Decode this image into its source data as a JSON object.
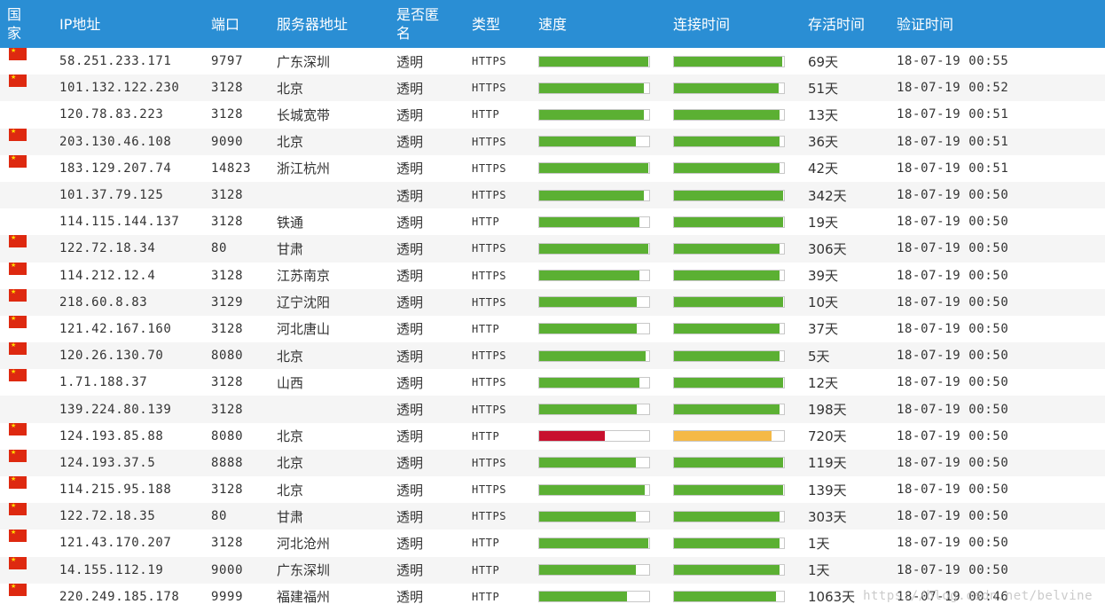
{
  "headers": [
    "国家",
    "IP地址",
    "端口",
    "服务器地址",
    "是否匿名",
    "类型",
    "速度",
    "连接时间",
    "存活时间",
    "验证时间"
  ],
  "colors": {
    "header_bg": "#2a8ed4",
    "bar_good": "#5bb033",
    "bar_bad": "#c8102e",
    "bar_warn": "#f5b946"
  },
  "rows": [
    {
      "flag": true,
      "ip": "58.251.233.171",
      "port": "9797",
      "location": "广东深圳",
      "anon": "透明",
      "type": "HTTPS",
      "speed": 0.99,
      "speed_color": "#5bb033",
      "conn": 0.98,
      "conn_color": "#5bb033",
      "alive": "69天",
      "verified": "18-07-19 00:55"
    },
    {
      "flag": true,
      "ip": "101.132.122.230",
      "port": "3128",
      "location": "北京",
      "anon": "透明",
      "type": "HTTPS",
      "speed": 0.95,
      "speed_color": "#5bb033",
      "conn": 0.95,
      "conn_color": "#5bb033",
      "alive": "51天",
      "verified": "18-07-19 00:52"
    },
    {
      "flag": false,
      "ip": "120.78.83.223",
      "port": "3128",
      "location": "长城宽带",
      "anon": "透明",
      "type": "HTTP",
      "speed": 0.95,
      "speed_color": "#5bb033",
      "conn": 0.96,
      "conn_color": "#5bb033",
      "alive": "13天",
      "verified": "18-07-19 00:51"
    },
    {
      "flag": true,
      "ip": "203.130.46.108",
      "port": "9090",
      "location": "北京",
      "anon": "透明",
      "type": "HTTPS",
      "speed": 0.88,
      "speed_color": "#5bb033",
      "conn": 0.96,
      "conn_color": "#5bb033",
      "alive": "36天",
      "verified": "18-07-19 00:51"
    },
    {
      "flag": true,
      "ip": "183.129.207.74",
      "port": "14823",
      "location": "浙江杭州",
      "anon": "透明",
      "type": "HTTPS",
      "speed": 0.99,
      "speed_color": "#5bb033",
      "conn": 0.96,
      "conn_color": "#5bb033",
      "alive": "42天",
      "verified": "18-07-19 00:51"
    },
    {
      "flag": false,
      "ip": "101.37.79.125",
      "port": "3128",
      "location": "",
      "anon": "透明",
      "type": "HTTPS",
      "speed": 0.95,
      "speed_color": "#5bb033",
      "conn": 0.99,
      "conn_color": "#5bb033",
      "alive": "342天",
      "verified": "18-07-19 00:50"
    },
    {
      "flag": false,
      "ip": "114.115.144.137",
      "port": "3128",
      "location": "铁通",
      "anon": "透明",
      "type": "HTTP",
      "speed": 0.91,
      "speed_color": "#5bb033",
      "conn": 0.99,
      "conn_color": "#5bb033",
      "alive": "19天",
      "verified": "18-07-19 00:50"
    },
    {
      "flag": true,
      "ip": "122.72.18.34",
      "port": "80",
      "location": "甘肃",
      "anon": "透明",
      "type": "HTTPS",
      "speed": 0.99,
      "speed_color": "#5bb033",
      "conn": 0.96,
      "conn_color": "#5bb033",
      "alive": "306天",
      "verified": "18-07-19 00:50"
    },
    {
      "flag": true,
      "ip": "114.212.12.4",
      "port": "3128",
      "location": "江苏南京",
      "anon": "透明",
      "type": "HTTPS",
      "speed": 0.91,
      "speed_color": "#5bb033",
      "conn": 0.96,
      "conn_color": "#5bb033",
      "alive": "39天",
      "verified": "18-07-19 00:50"
    },
    {
      "flag": true,
      "ip": "218.60.8.83",
      "port": "3129",
      "location": "辽宁沈阳",
      "anon": "透明",
      "type": "HTTPS",
      "speed": 0.89,
      "speed_color": "#5bb033",
      "conn": 0.99,
      "conn_color": "#5bb033",
      "alive": "10天",
      "verified": "18-07-19 00:50"
    },
    {
      "flag": true,
      "ip": "121.42.167.160",
      "port": "3128",
      "location": "河北唐山",
      "anon": "透明",
      "type": "HTTP",
      "speed": 0.89,
      "speed_color": "#5bb033",
      "conn": 0.96,
      "conn_color": "#5bb033",
      "alive": "37天",
      "verified": "18-07-19 00:50"
    },
    {
      "flag": true,
      "ip": "120.26.130.70",
      "port": "8080",
      "location": "北京",
      "anon": "透明",
      "type": "HTTPS",
      "speed": 0.97,
      "speed_color": "#5bb033",
      "conn": 0.96,
      "conn_color": "#5bb033",
      "alive": "5天",
      "verified": "18-07-19 00:50"
    },
    {
      "flag": true,
      "ip": "1.71.188.37",
      "port": "3128",
      "location": "山西",
      "anon": "透明",
      "type": "HTTPS",
      "speed": 0.91,
      "speed_color": "#5bb033",
      "conn": 0.99,
      "conn_color": "#5bb033",
      "alive": "12天",
      "verified": "18-07-19 00:50"
    },
    {
      "flag": false,
      "ip": "139.224.80.139",
      "port": "3128",
      "location": "",
      "anon": "透明",
      "type": "HTTPS",
      "speed": 0.89,
      "speed_color": "#5bb033",
      "conn": 0.96,
      "conn_color": "#5bb033",
      "alive": "198天",
      "verified": "18-07-19 00:50"
    },
    {
      "flag": true,
      "ip": "124.193.85.88",
      "port": "8080",
      "location": "北京",
      "anon": "透明",
      "type": "HTTP",
      "speed": 0.6,
      "speed_color": "#c8102e",
      "conn": 0.89,
      "conn_color": "#f5b946",
      "alive": "720天",
      "verified": "18-07-19 00:50"
    },
    {
      "flag": true,
      "ip": "124.193.37.5",
      "port": "8888",
      "location": "北京",
      "anon": "透明",
      "type": "HTTPS",
      "speed": 0.88,
      "speed_color": "#5bb033",
      "conn": 0.99,
      "conn_color": "#5bb033",
      "alive": "119天",
      "verified": "18-07-19 00:50"
    },
    {
      "flag": true,
      "ip": "114.215.95.188",
      "port": "3128",
      "location": "北京",
      "anon": "透明",
      "type": "HTTPS",
      "speed": 0.96,
      "speed_color": "#5bb033",
      "conn": 0.99,
      "conn_color": "#5bb033",
      "alive": "139天",
      "verified": "18-07-19 00:50"
    },
    {
      "flag": true,
      "ip": "122.72.18.35",
      "port": "80",
      "location": "甘肃",
      "anon": "透明",
      "type": "HTTPS",
      "speed": 0.88,
      "speed_color": "#5bb033",
      "conn": 0.96,
      "conn_color": "#5bb033",
      "alive": "303天",
      "verified": "18-07-19 00:50"
    },
    {
      "flag": true,
      "ip": "121.43.170.207",
      "port": "3128",
      "location": "河北沧州",
      "anon": "透明",
      "type": "HTTP",
      "speed": 0.99,
      "speed_color": "#5bb033",
      "conn": 0.96,
      "conn_color": "#5bb033",
      "alive": "1天",
      "verified": "18-07-19 00:50"
    },
    {
      "flag": true,
      "ip": "14.155.112.19",
      "port": "9000",
      "location": "广东深圳",
      "anon": "透明",
      "type": "HTTP",
      "speed": 0.88,
      "speed_color": "#5bb033",
      "conn": 0.96,
      "conn_color": "#5bb033",
      "alive": "1天",
      "verified": "18-07-19 00:50"
    },
    {
      "flag": true,
      "ip": "220.249.185.178",
      "port": "9999",
      "location": "福建福州",
      "anon": "透明",
      "type": "HTTP",
      "speed": 0.8,
      "speed_color": "#5bb033",
      "conn": 0.93,
      "conn_color": "#5bb033",
      "alive": "1063天",
      "verified": "18-07-19 00:46"
    }
  ],
  "watermark": "https://blog.csdn.net/belvine"
}
